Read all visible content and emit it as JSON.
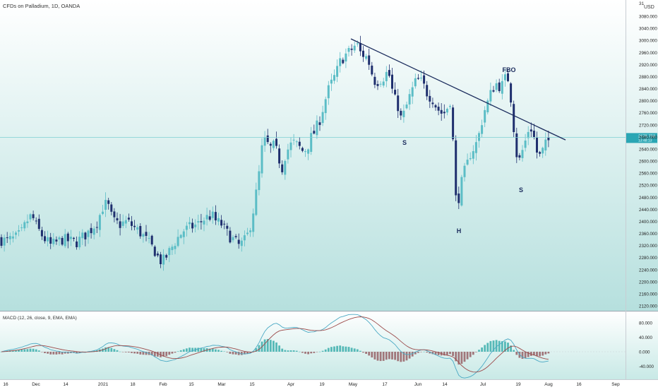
{
  "header": {
    "title": "CFDs on Palladium, 1D, OANDA",
    "currency": "USD",
    "currency_prefix": "31"
  },
  "price_axis": {
    "labels": [
      "3080.000",
      "3040.000",
      "3000.000",
      "2960.000",
      "2920.000",
      "2880.000",
      "2840.000",
      "2800.000",
      "2760.000",
      "2720.000",
      "2680.000",
      "2640.000",
      "2600.000",
      "2560.000",
      "2520.000",
      "2480.000",
      "2440.000",
      "2400.000",
      "2360.000",
      "2320.000",
      "2280.000",
      "2240.000",
      "2200.000",
      "2160.000",
      "2120.000"
    ],
    "current_price_label": "2678.750",
    "current_price_sub": "13:48:13"
  },
  "macd": {
    "title": "MACD (12, 26, close, 9, EMA, EMA)",
    "axis_labels": [
      "80.000",
      "40.000",
      "0.000",
      "-40.000"
    ]
  },
  "time_axis": {
    "labels": [
      "16",
      "Dec",
      "14",
      "2021",
      "18",
      "Feb",
      "15",
      "Mar",
      "15",
      "Apr",
      "19",
      "May",
      "17",
      "Jun",
      "14",
      "Jul",
      "19",
      "Aug",
      "16",
      "Sep"
    ]
  },
  "annotations": {
    "left_shoulder": "S",
    "head": "H",
    "right_shoulder": "S",
    "fbo": "FBO"
  },
  "colors": {
    "up_candle": "#5bbdc6",
    "down_candle": "#1f2f6e",
    "background_top": "#ffffff",
    "background_bottom": "#b9e2e0",
    "trendline": "#1a2b5c",
    "price_tag": "#2aa6b4",
    "macd_line": "#4aa9c4",
    "signal_line": "#9c4b4b",
    "hist_pos": "#55b9b7",
    "hist_neg": "#a0767a"
  },
  "chart_data": {
    "type": "candlestick",
    "title": "CFDs on Palladium, 1D, OANDA",
    "ylim": [
      2120,
      3100
    ],
    "current_price": 2678.75,
    "pattern": "head and shoulders with descending neckline trendline",
    "trendline": [
      {
        "date": "May 1",
        "price": 3005
      },
      {
        "date": "Aug 12",
        "price": 2670
      }
    ],
    "key_points": [
      {
        "label": "S",
        "date": "May 26",
        "approx_price": 2730
      },
      {
        "label": "H",
        "date": "Jun 17",
        "approx_price": 2455
      },
      {
        "label": "S",
        "date": "Jul 27",
        "approx_price": 2565
      },
      {
        "label": "FBO",
        "date": "Jul 12",
        "approx_price": 2880
      }
    ],
    "macd_params": "12, 26, close, 9, EMA, EMA",
    "macd_ylim": [
      -50,
      95
    ]
  }
}
